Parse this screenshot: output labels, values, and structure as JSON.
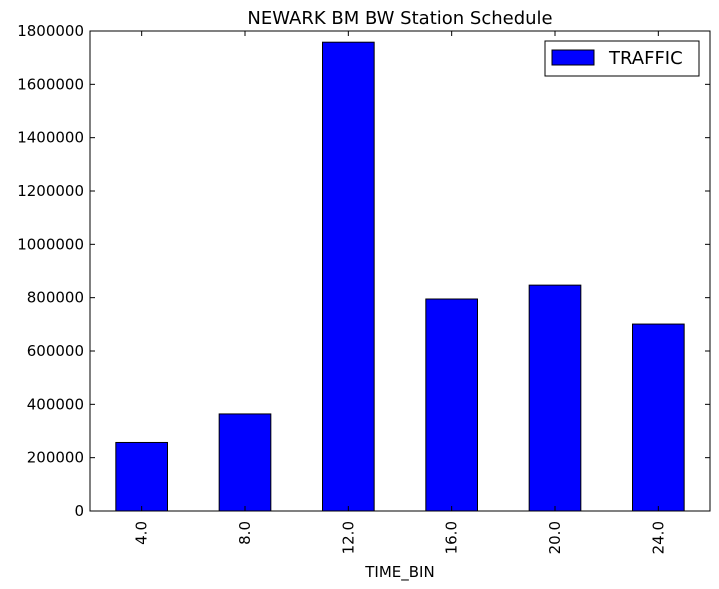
{
  "chart_data": {
    "type": "bar",
    "title": "NEWARK BM BW Station Schedule",
    "xlabel": "TIME_BIN",
    "ylabel": "",
    "categories": [
      "4.0",
      "8.0",
      "12.0",
      "16.0",
      "20.0",
      "24.0"
    ],
    "series": [
      {
        "name": "TRAFFIC",
        "values": [
          257000,
          364000,
          1758000,
          795000,
          847000,
          701000
        ],
        "color": "#0000ff"
      }
    ],
    "ylim": [
      0,
      1800000
    ],
    "yticks": [
      "0",
      "200000",
      "400000",
      "600000",
      "800000",
      "1000000",
      "1200000",
      "1400000",
      "1600000",
      "1800000"
    ],
    "ytick_values": [
      0,
      200000,
      400000,
      600000,
      800000,
      1000000,
      1200000,
      1400000,
      1600000,
      1800000
    ],
    "grid": false,
    "legend_position": "top-right",
    "xtick_rotation": "vertical"
  }
}
